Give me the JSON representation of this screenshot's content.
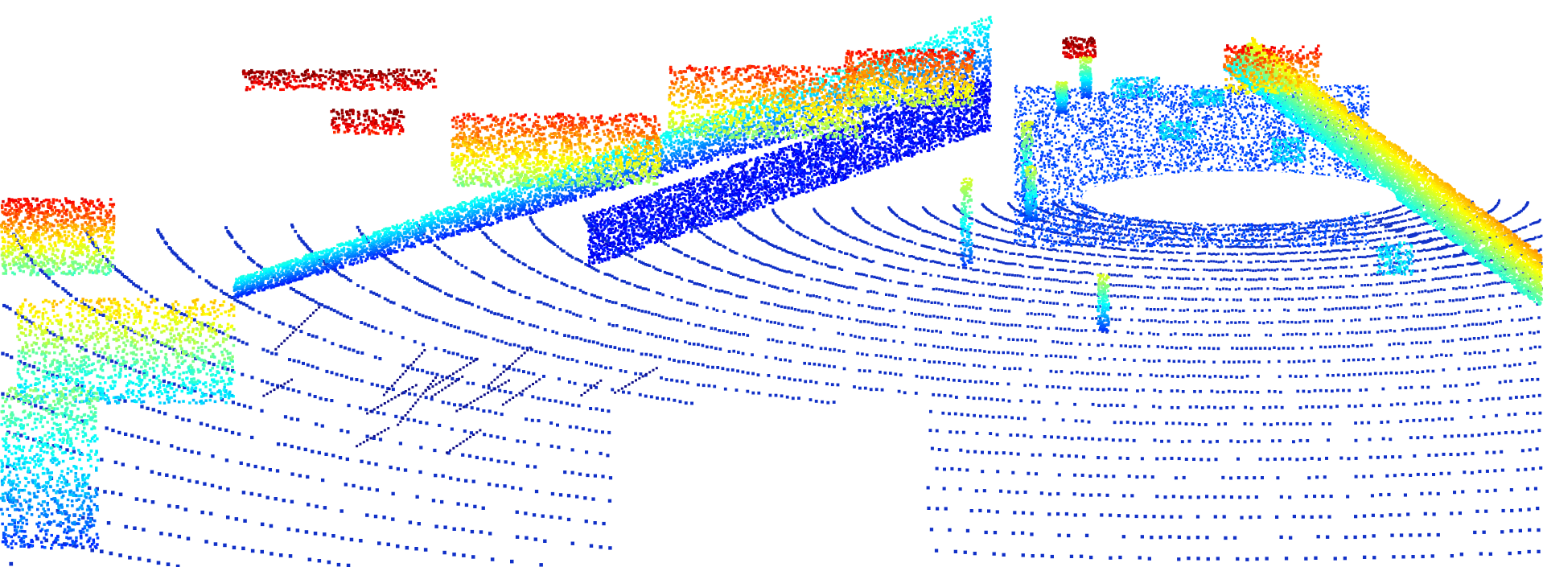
{
  "view": {
    "background": "#ffffff",
    "colormap": [
      "#00008f",
      "#0000ff",
      "#0050ff",
      "#00b0ff",
      "#00ffff",
      "#50ffb0",
      "#b0ff50",
      "#ffff00",
      "#ffb000",
      "#ff5000",
      "#ff0000",
      "#800000"
    ],
    "near_color": "#1538d0",
    "ground_color": "#1030c8",
    "seed": 7
  }
}
